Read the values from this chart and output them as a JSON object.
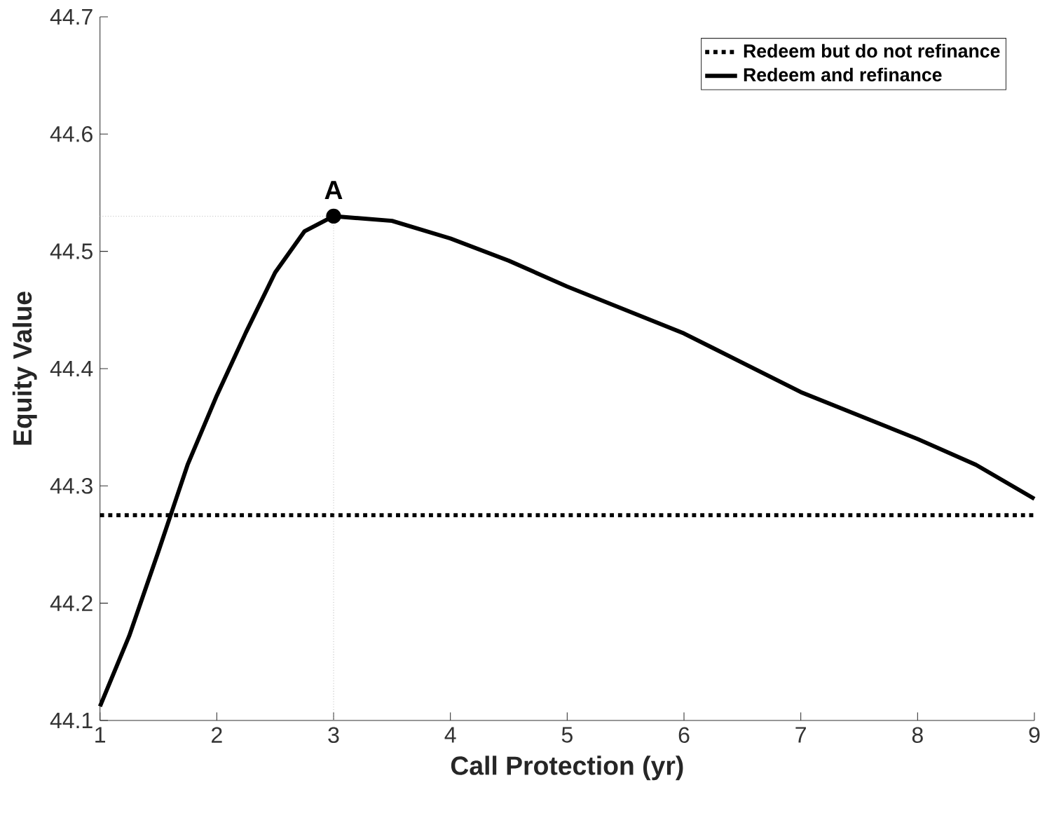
{
  "chart_data": {
    "type": "line",
    "xlabel": "Call Protection (yr)",
    "ylabel": "Equity Value",
    "xlim": [
      1,
      9
    ],
    "ylim": [
      44.1,
      44.7
    ],
    "xticks": [
      1,
      2,
      3,
      4,
      5,
      6,
      7,
      8,
      9
    ],
    "yticks": [
      44.1,
      44.2,
      44.3,
      44.4,
      44.5,
      44.6,
      44.7
    ],
    "legend": "top right",
    "series": [
      {
        "name": "Redeem but do not refinance",
        "color": "#000000",
        "line_style": "dotted",
        "x": [
          1,
          9
        ],
        "values": [
          44.275,
          44.275
        ]
      },
      {
        "name": "Redeem and refinance",
        "color": "#000000",
        "line_style": "solid",
        "x": [
          1,
          1.25,
          1.5,
          1.75,
          2,
          2.25,
          2.5,
          2.75,
          3,
          3.5,
          4,
          4.5,
          5,
          6,
          7,
          8,
          8.5,
          9
        ],
        "values": [
          44.112,
          44.172,
          44.244,
          44.318,
          44.377,
          44.431,
          44.482,
          44.517,
          44.53,
          44.526,
          44.511,
          44.492,
          44.47,
          44.43,
          44.38,
          44.34,
          44.318,
          44.289
        ]
      }
    ],
    "annotations": [
      {
        "text": "A",
        "x": 3,
        "y": 44.53
      }
    ]
  }
}
